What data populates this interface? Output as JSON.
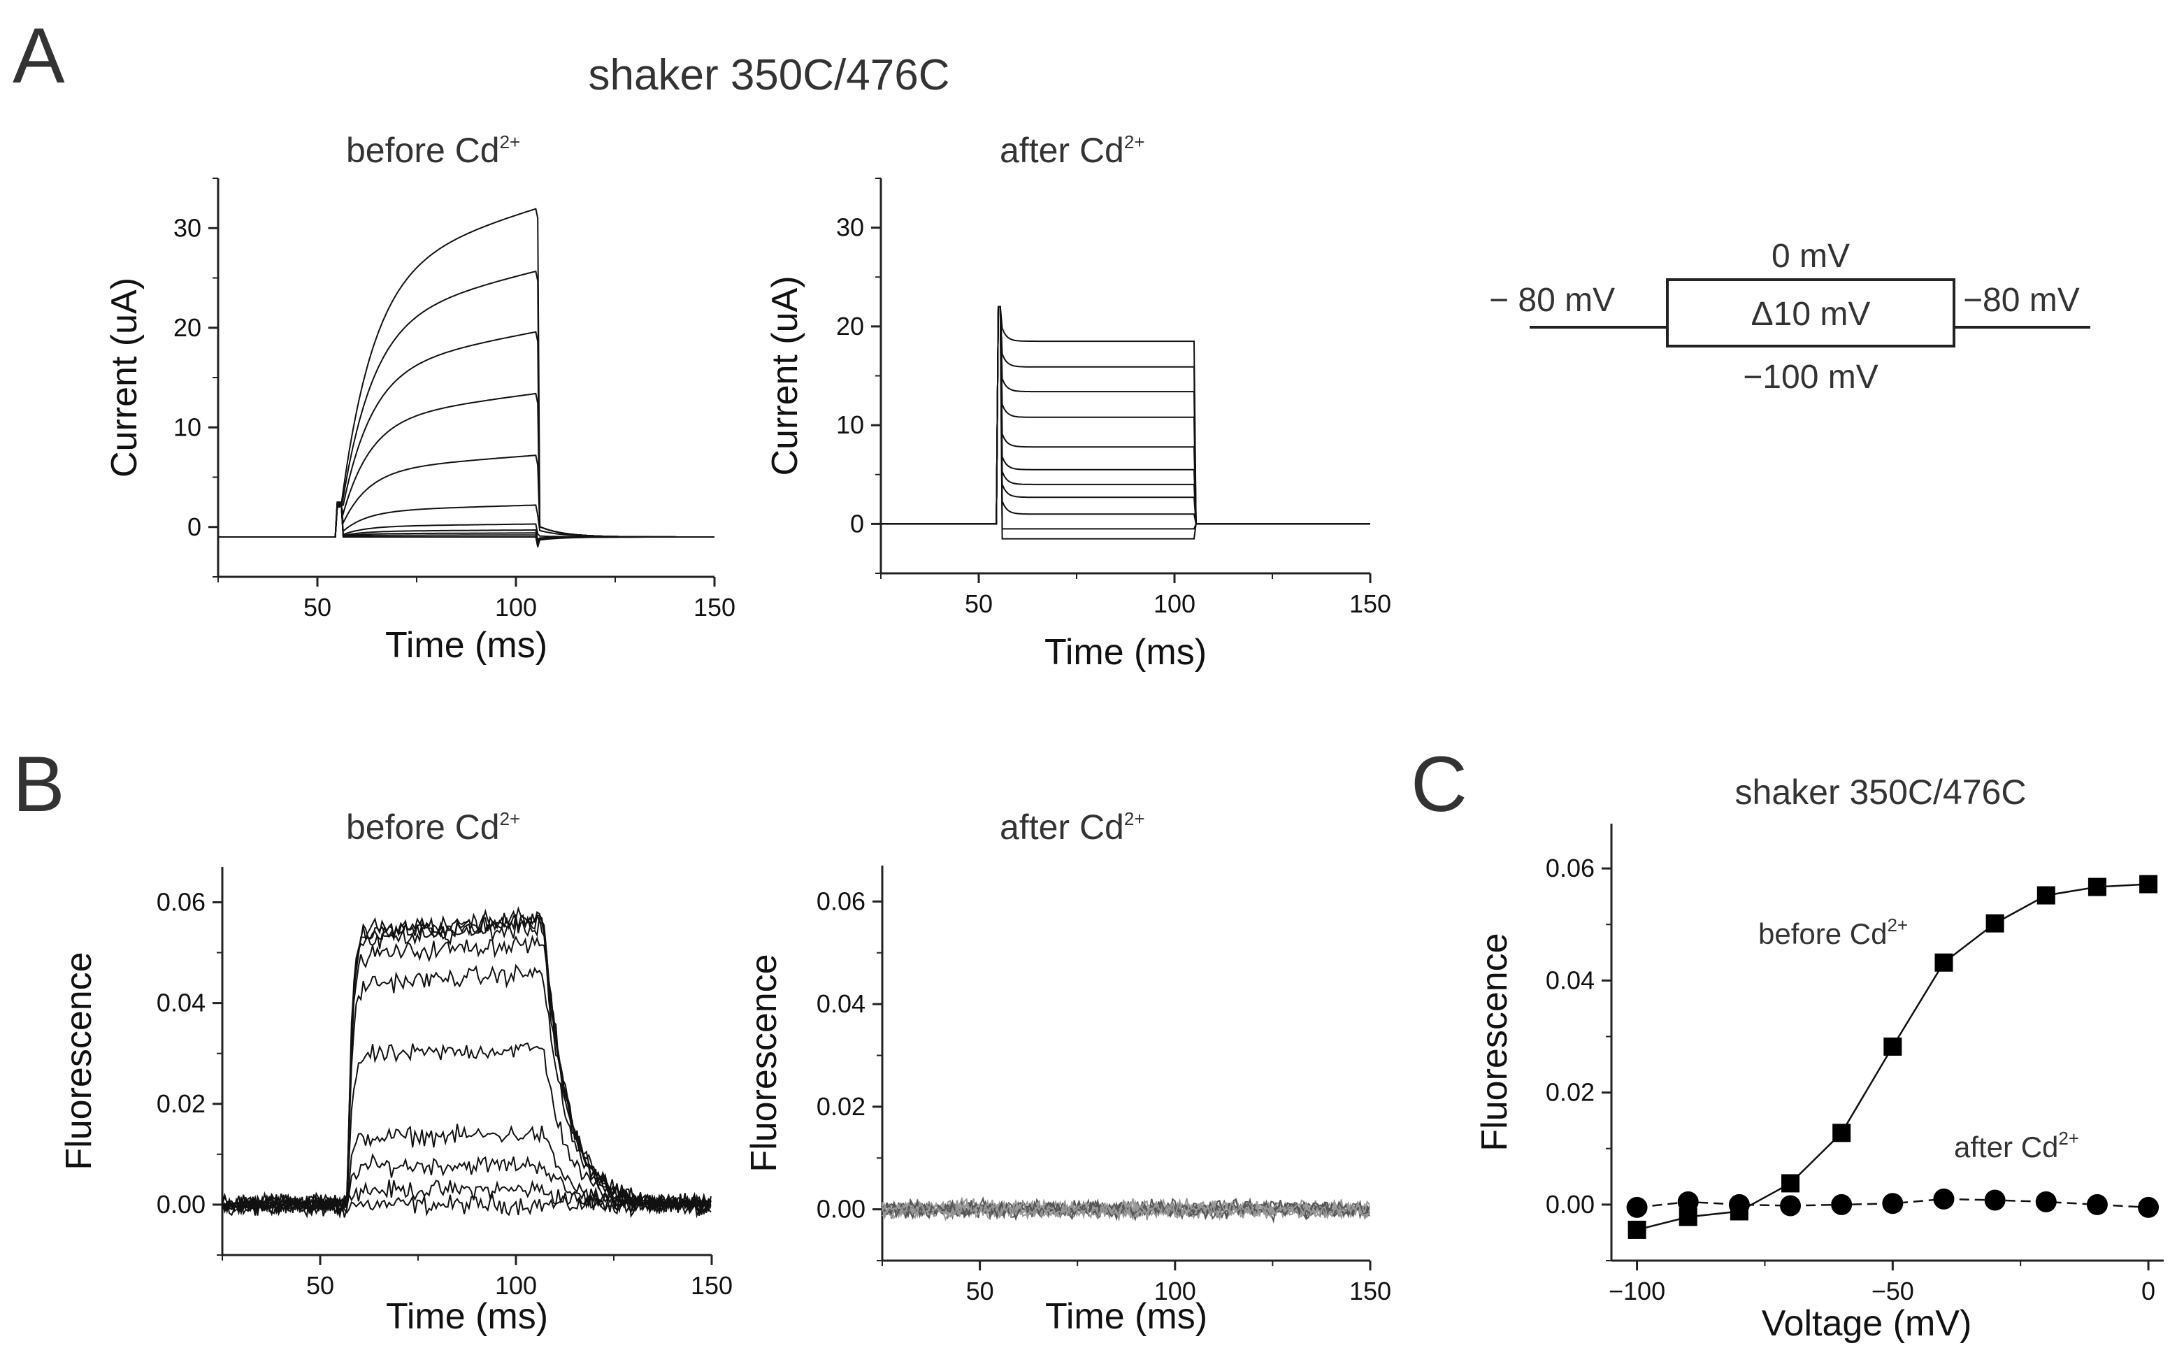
{
  "panels": {
    "A": {
      "letter": "A",
      "title": "shaker 350C/476C",
      "left_subtitle": "before Cd",
      "right_subtitle": "after Cd",
      "superscript": "2+",
      "protocol": {
        "holding_left": "− 80 mV",
        "holding_right": "−80 mV",
        "top": "0 mV",
        "step": "Δ10 mV",
        "bottom": "−100 mV"
      }
    },
    "B": {
      "letter": "B",
      "left_subtitle": "before Cd",
      "right_subtitle": "after Cd",
      "superscript": "2+"
    },
    "C": {
      "letter": "C",
      "title": "shaker 350C/476C",
      "label_before": "before Cd",
      "label_after": "after Cd",
      "superscript": "2+"
    }
  },
  "chart_data": [
    {
      "id": "A-before",
      "type": "line",
      "title": "before Cd2+",
      "xlabel": "Time (ms)",
      "ylabel": "Current (uA)",
      "xlim": [
        25,
        150
      ],
      "ylim": [
        -5,
        35
      ],
      "xticks": [
        50,
        100,
        150
      ],
      "yticks": [
        0,
        10,
        20,
        30
      ],
      "pulse": {
        "start": 55,
        "end": 105
      },
      "series_steady_values": [
        -1,
        -0.8,
        -0.6,
        -0.3,
        0.3,
        2.2,
        7.2,
        13.4,
        19.6,
        25.7,
        32
      ]
    },
    {
      "id": "A-after",
      "type": "line",
      "title": "after Cd2+",
      "xlabel": "Time (ms)",
      "ylabel": "Current (uA)",
      "xlim": [
        25,
        150
      ],
      "ylim": [
        -5,
        35
      ],
      "xticks": [
        50,
        100,
        150
      ],
      "yticks": [
        0,
        10,
        20,
        30
      ],
      "pulse": {
        "start": 55,
        "end": 105
      },
      "series_steady_values": [
        -1.5,
        -0.5,
        1,
        2.7,
        4,
        5.5,
        7.8,
        10.8,
        13.4,
        15.9,
        18.5
      ]
    },
    {
      "id": "B-before",
      "type": "line",
      "title": "before Cd2+",
      "xlabel": "Time (ms)",
      "ylabel": "Fluorescence",
      "xlim": [
        25,
        150
      ],
      "ylim": [
        -0.01,
        0.067
      ],
      "xticks": [
        50,
        100,
        150
      ],
      "yticks": [
        0.0,
        0.02,
        0.04,
        0.06
      ],
      "pulse": {
        "start": 57,
        "end": 107
      },
      "series_plateau_values": [
        0.0,
        0.003,
        0.008,
        0.014,
        0.031,
        0.046,
        0.052,
        0.055,
        0.056,
        0.057,
        0.057
      ]
    },
    {
      "id": "B-after",
      "type": "line",
      "title": "after Cd2+",
      "xlabel": "Time (ms)",
      "ylabel": "Fluorescence",
      "xlim": [
        25,
        150
      ],
      "ylim": [
        -0.01,
        0.067
      ],
      "xticks": [
        50,
        100,
        150
      ],
      "yticks": [
        0.0,
        0.02,
        0.04,
        0.06
      ],
      "series_plateau_values": [
        0,
        0,
        0,
        0,
        0,
        0,
        0,
        0,
        0,
        0,
        0
      ]
    },
    {
      "id": "C",
      "type": "line",
      "title": "shaker 350C/476C",
      "xlabel": "Voltage (mV)",
      "ylabel": "Fluorescence",
      "xlim": [
        -105,
        3
      ],
      "ylim": [
        -0.01,
        0.068
      ],
      "xticks": [
        -100,
        -50,
        0
      ],
      "yticks": [
        0.0,
        0.02,
        0.04,
        0.06
      ],
      "x": [
        -100,
        -90,
        -80,
        -70,
        -60,
        -50,
        -40,
        -30,
        -20,
        -10,
        0
      ],
      "series": [
        {
          "name": "before Cd2+",
          "marker": "square",
          "values": [
            -0.0045,
            -0.0022,
            -0.0012,
            0.0038,
            0.0128,
            0.0282,
            0.0432,
            0.0502,
            0.0552,
            0.0567,
            0.0572
          ]
        },
        {
          "name": "after Cd2+",
          "marker": "circle",
          "values": [
            -0.0005,
            0.0005,
            0.0,
            -0.0002,
            0.0,
            0.0002,
            0.001,
            0.0008,
            0.0005,
            0.0,
            -0.0005
          ]
        }
      ]
    }
  ]
}
